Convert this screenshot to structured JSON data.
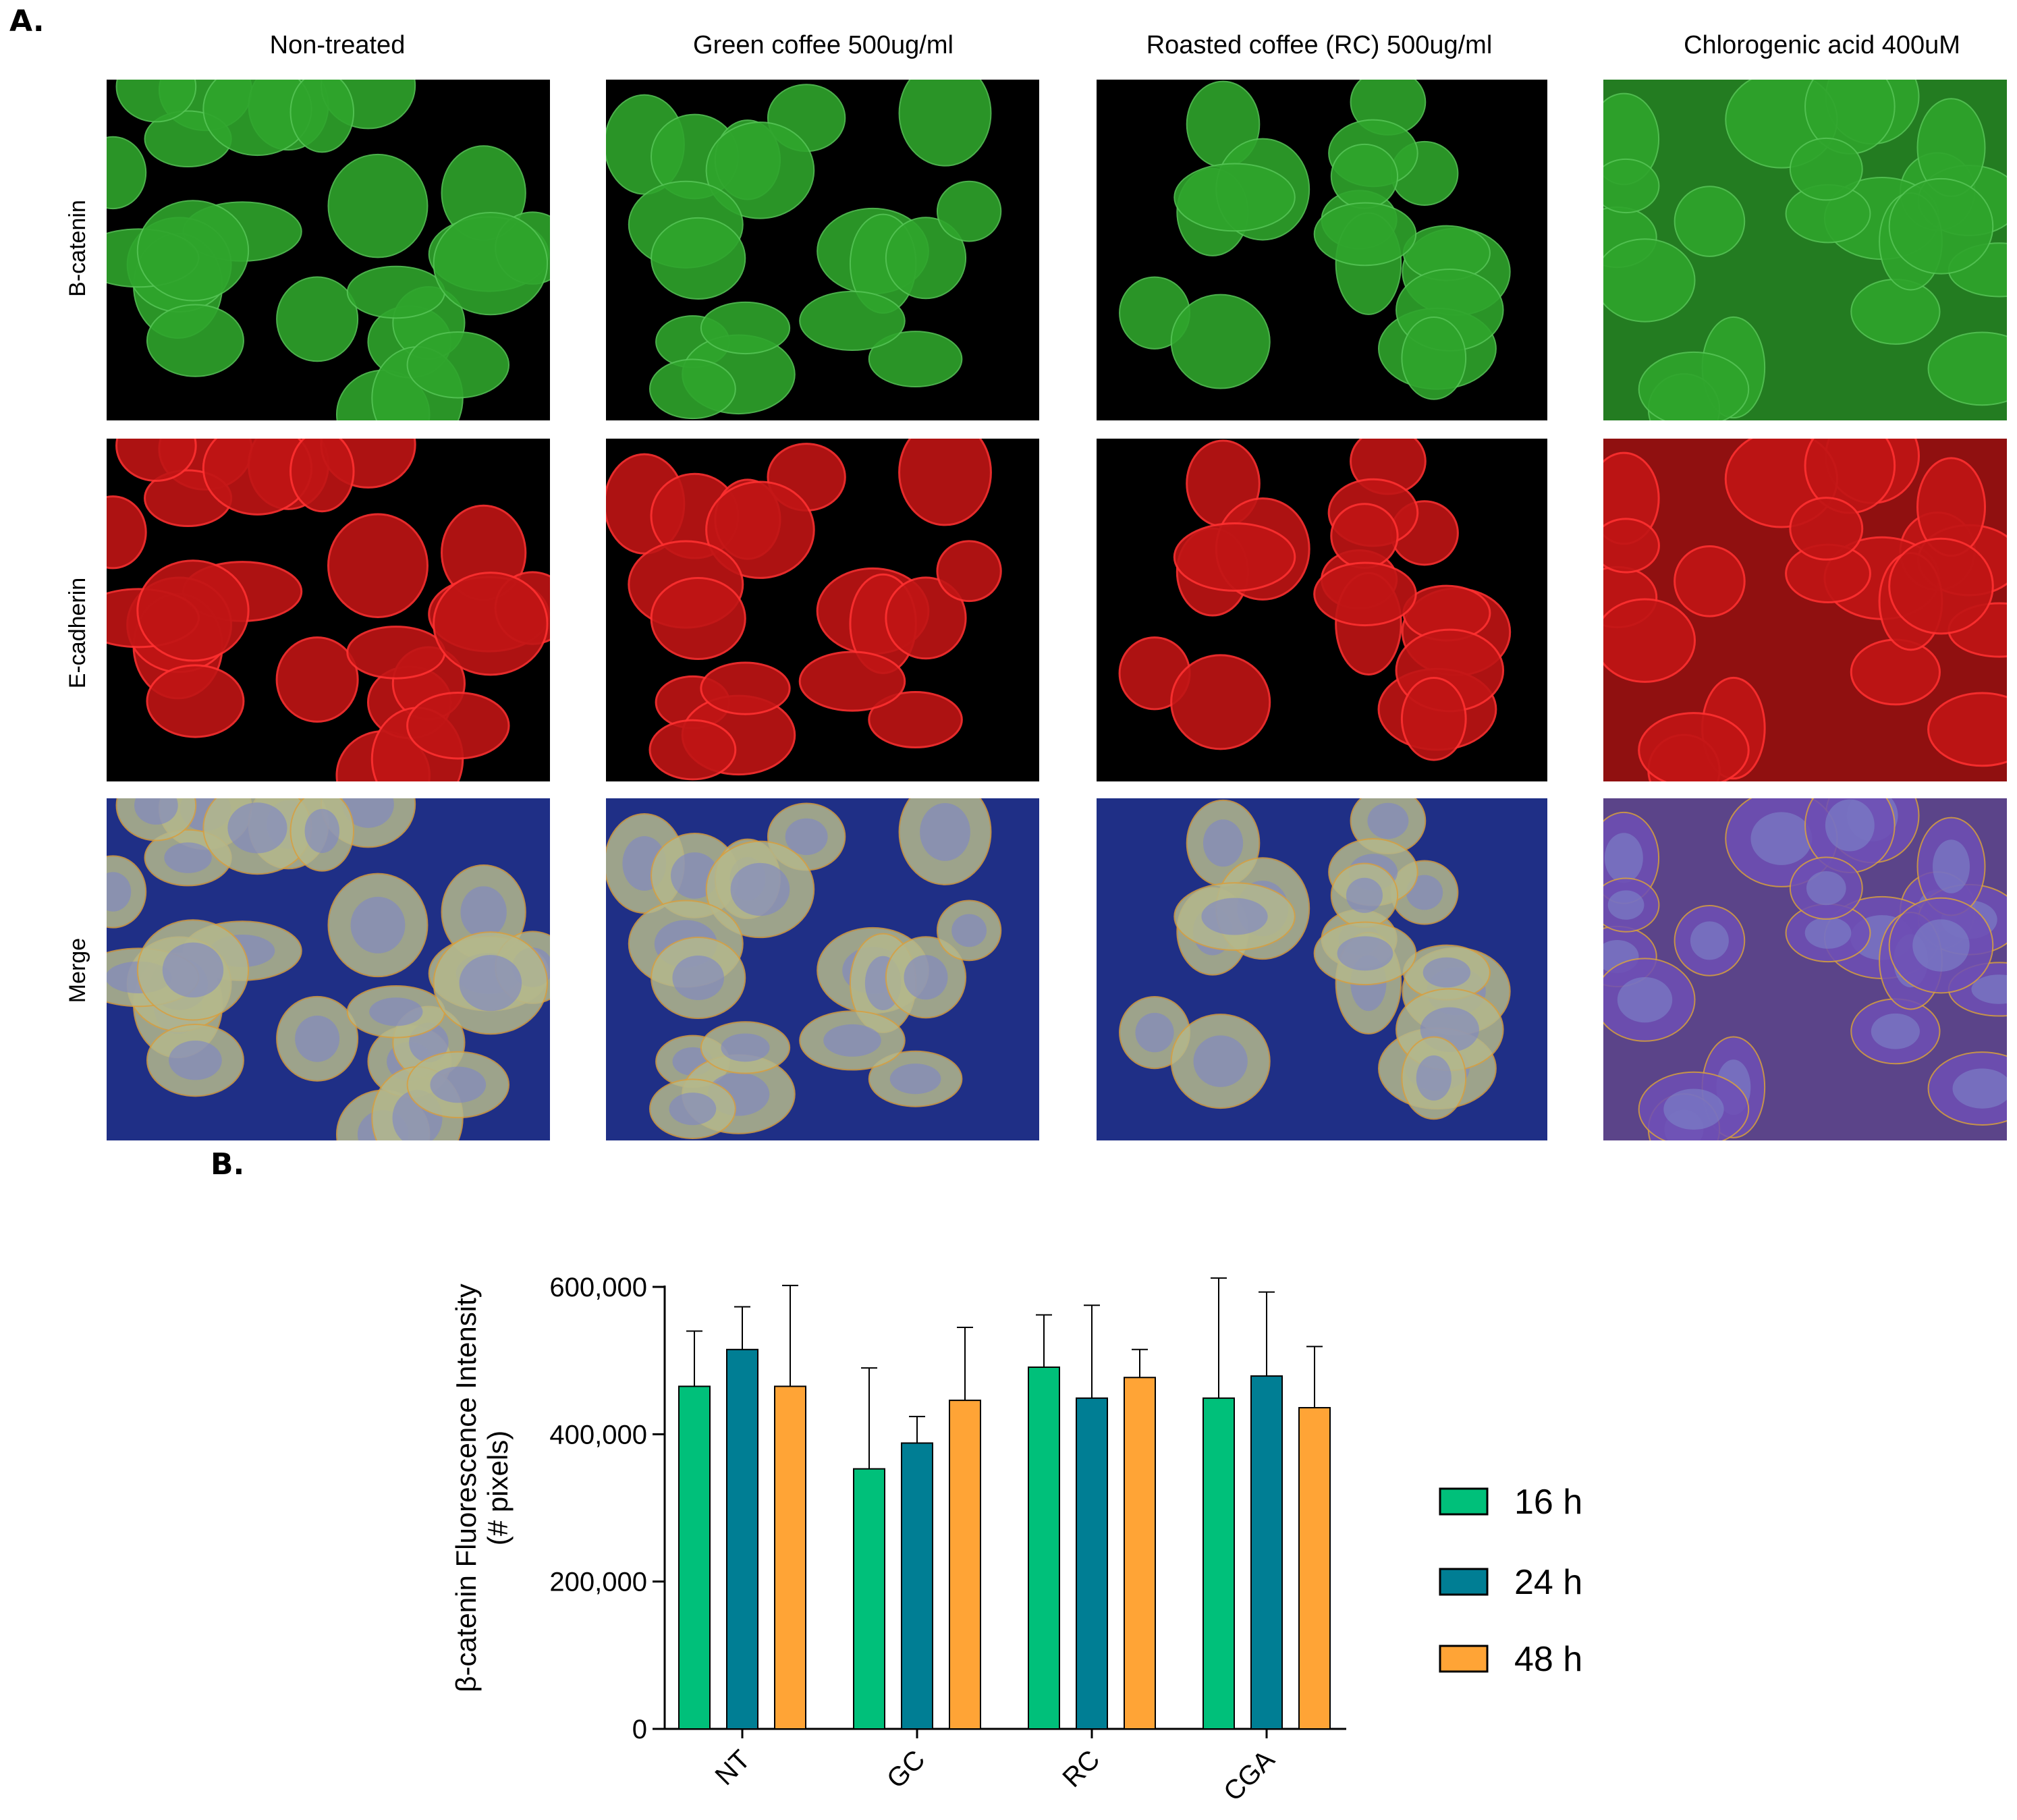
{
  "panel_a": {
    "label": "A.",
    "columns": [
      "Non-treated",
      "Green coffee 500ug/ml",
      "Roasted coffee (RC) 500ug/ml",
      "Chlorogenic acid 400uM"
    ],
    "rows": [
      "B-catenin",
      "E-cadherin",
      "Merge"
    ],
    "colors": {
      "b_catenin": "#2fa52c",
      "e_cadherin": "#c01515",
      "merge_background": "#1f2f86",
      "merge_cell": "#b4b88c"
    }
  },
  "panel_b": {
    "label": "B."
  },
  "chart_data": {
    "type": "bar",
    "categories": [
      "NT",
      "GC",
      "RC",
      "CGA"
    ],
    "ylabel": "β-catenin Fluorescence Intensity (# pixels)",
    "ylabel_lines": [
      "β-catenin Fluorescence Intensity",
      "(# pixels)"
    ],
    "ylim": [
      0,
      600000
    ],
    "yticks": [
      0,
      200000,
      400000,
      600000
    ],
    "ytick_labels": [
      "0",
      "200,000",
      "400,000",
      "600,000"
    ],
    "legend_position": "right",
    "grid": false,
    "series": [
      {
        "name": "16 h",
        "color": "#00c07a",
        "values": [
          465000,
          353000,
          491000,
          449000
        ],
        "errors": [
          75000,
          137000,
          71000,
          163000
        ]
      },
      {
        "name": "24 h",
        "color": "#007e94",
        "values": [
          515000,
          388000,
          449000,
          479000
        ],
        "errors": [
          58000,
          36000,
          126000,
          114000
        ]
      },
      {
        "name": "48 h",
        "color": "#ffa436",
        "values": [
          465000,
          446000,
          477000,
          436000
        ],
        "errors": [
          137000,
          99000,
          38000,
          83000
        ]
      }
    ]
  }
}
